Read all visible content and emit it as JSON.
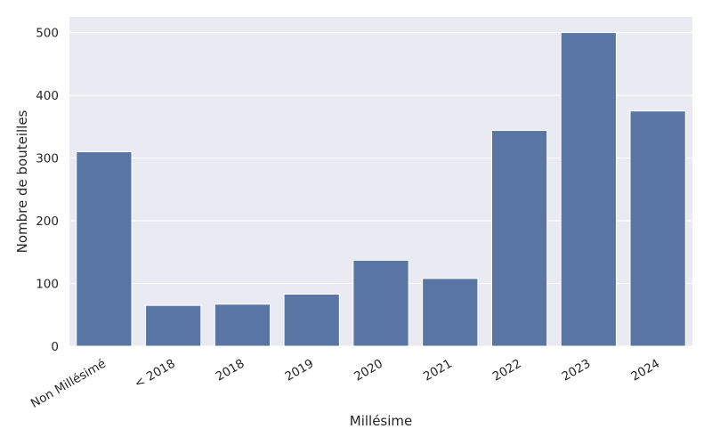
{
  "chart_data": {
    "type": "bar",
    "title": "",
    "xlabel": "Millésime",
    "ylabel": "Nombre de bouteilles",
    "categories": [
      "Non Millésimé",
      "< 2018",
      "2018",
      "2019",
      "2020",
      "2021",
      "2022",
      "2023",
      "2024"
    ],
    "values": [
      310,
      65,
      67,
      83,
      137,
      108,
      344,
      500,
      375
    ],
    "ylim": [
      0,
      525
    ],
    "yticks": [
      0,
      100,
      200,
      300,
      400,
      500
    ],
    "grid": true,
    "legend": "none",
    "colors": {
      "bar": "#5975a4",
      "background": "#eaeaf2",
      "grid": "#ffffff",
      "text": "#262626"
    }
  }
}
